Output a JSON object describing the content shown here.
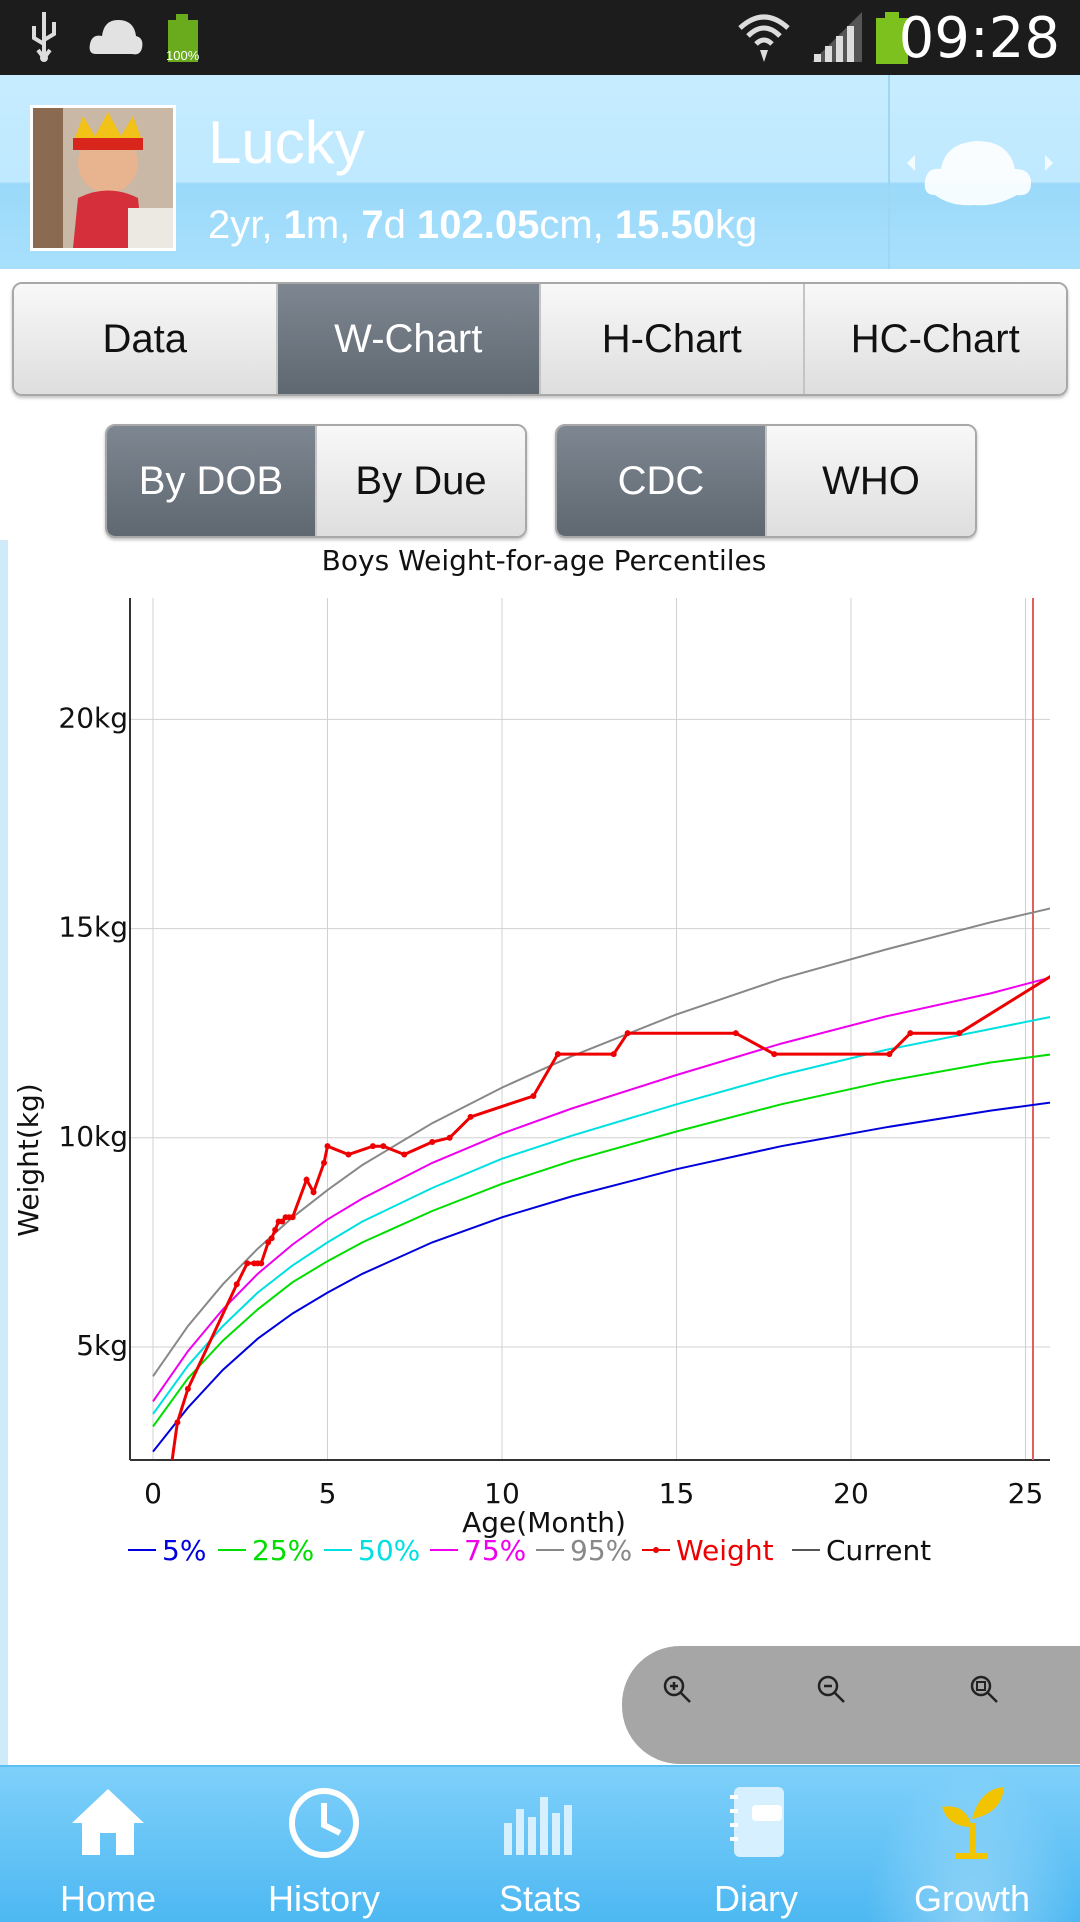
{
  "status_bar": {
    "time": "09:28",
    "battery_small_label": "100%"
  },
  "profile": {
    "name": "Lucky",
    "age_parts": [
      "2",
      "yr, ",
      "1",
      "m, ",
      "7",
      "d "
    ],
    "height_value": "102.05",
    "height_unit": "cm, ",
    "weight_value": "15.50",
    "weight_unit": "kg"
  },
  "tabs": [
    {
      "label": "Data",
      "active": false
    },
    {
      "label": "W-Chart",
      "active": true
    },
    {
      "label": "H-Chart",
      "active": false
    },
    {
      "label": "HC-Chart",
      "active": false
    }
  ],
  "age_basis": [
    {
      "label": "By DOB",
      "active": true
    },
    {
      "label": "By Due",
      "active": false
    }
  ],
  "standard": [
    {
      "label": "CDC",
      "active": true
    },
    {
      "label": "WHO",
      "active": false
    }
  ],
  "chart_data": {
    "type": "line",
    "title": "Boys Weight-for-age Percentiles",
    "xlabel": "Age(Month)",
    "ylabel": "Weight(kg)",
    "xlim": [
      0,
      25.8
    ],
    "ylim": [
      2.3,
      22.9
    ],
    "x_ticks": [
      0,
      5,
      10,
      15,
      20,
      25
    ],
    "x_tick_labels": [
      "0",
      "5",
      "10",
      "15",
      "20",
      "25"
    ],
    "y_ticks": [
      5,
      10,
      15,
      20
    ],
    "y_tick_labels": [
      "5kg",
      "10kg",
      "15kg",
      "20kg"
    ],
    "grid": true,
    "legend_position": "bottom",
    "series": [
      {
        "name": "5%",
        "color": "#0000dd",
        "x": [
          0,
          1,
          2,
          3,
          4,
          5,
          6,
          8,
          10,
          12,
          15,
          18,
          21,
          24,
          25.8
        ],
        "y": [
          2.5,
          3.55,
          4.45,
          5.2,
          5.8,
          6.3,
          6.75,
          7.5,
          8.1,
          8.6,
          9.25,
          9.8,
          10.25,
          10.65,
          10.85
        ]
      },
      {
        "name": "25%",
        "color": "#00dd00",
        "x": [
          0,
          1,
          2,
          3,
          4,
          5,
          6,
          8,
          10,
          12,
          15,
          18,
          21,
          24,
          25.8
        ],
        "y": [
          3.1,
          4.25,
          5.15,
          5.9,
          6.55,
          7.05,
          7.5,
          8.25,
          8.9,
          9.45,
          10.15,
          10.8,
          11.35,
          11.8,
          12.0
        ]
      },
      {
        "name": "50%",
        "color": "#00e0e0",
        "x": [
          0,
          1,
          2,
          3,
          4,
          5,
          6,
          8,
          10,
          12,
          15,
          18,
          21,
          24,
          25.8
        ],
        "y": [
          3.4,
          4.55,
          5.5,
          6.3,
          6.95,
          7.5,
          8.0,
          8.8,
          9.5,
          10.05,
          10.8,
          11.5,
          12.1,
          12.6,
          12.9
        ]
      },
      {
        "name": "75%",
        "color": "#ee00ee",
        "x": [
          0,
          1,
          2,
          3,
          4,
          5,
          6,
          8,
          10,
          12,
          15,
          18,
          21,
          24,
          25.8
        ],
        "y": [
          3.7,
          4.9,
          5.9,
          6.75,
          7.45,
          8.05,
          8.55,
          9.4,
          10.1,
          10.7,
          11.5,
          12.25,
          12.9,
          13.45,
          13.85
        ]
      },
      {
        "name": "95%",
        "color": "#888888",
        "x": [
          0,
          1,
          2,
          3,
          4,
          5,
          6,
          8,
          10,
          12,
          15,
          18,
          21,
          24,
          25.8
        ],
        "y": [
          4.3,
          5.5,
          6.5,
          7.35,
          8.1,
          8.75,
          9.35,
          10.35,
          11.2,
          11.95,
          12.95,
          13.8,
          14.5,
          15.15,
          15.5
        ]
      },
      {
        "name": "Weight",
        "color": "#ee0000",
        "x": [
          0.5,
          0.7,
          1.0,
          2.4,
          2.7,
          2.9,
          3.0,
          3.1,
          3.3,
          3.4,
          3.5,
          3.6,
          3.7,
          3.8,
          3.9,
          4.0,
          4.4,
          4.6,
          4.9,
          5.0,
          5.6,
          6.3,
          6.6,
          7.2,
          8.0,
          8.5,
          9.1,
          10.9,
          11.6,
          13.2,
          13.6,
          16.7,
          17.8,
          21.1,
          21.7,
          23.1,
          25.8
        ],
        "y": [
          2.0,
          3.2,
          4.0,
          6.5,
          7.0,
          7.0,
          7.0,
          7.0,
          7.5,
          7.6,
          7.8,
          8.0,
          8.0,
          8.1,
          8.1,
          8.1,
          9.0,
          8.7,
          9.4,
          9.8,
          9.6,
          9.8,
          9.8,
          9.6,
          9.9,
          10.0,
          10.5,
          11.0,
          12.0,
          12.0,
          12.5,
          12.5,
          12.0,
          12.0,
          12.5,
          12.5,
          13.9
        ]
      },
      {
        "name": "Current",
        "color": "#555555",
        "x": [],
        "y": []
      }
    ]
  },
  "zoom_controls": [
    "zoom-in",
    "zoom-out",
    "zoom-reset"
  ],
  "bottom_nav": [
    {
      "label": "Home",
      "icon": "home-icon",
      "active": false
    },
    {
      "label": "History",
      "icon": "clock-icon",
      "active": false
    },
    {
      "label": "Stats",
      "icon": "bars-icon",
      "active": false
    },
    {
      "label": "Diary",
      "icon": "notebook-icon",
      "active": false
    },
    {
      "label": "Growth",
      "icon": "sprout-icon",
      "active": true
    }
  ]
}
